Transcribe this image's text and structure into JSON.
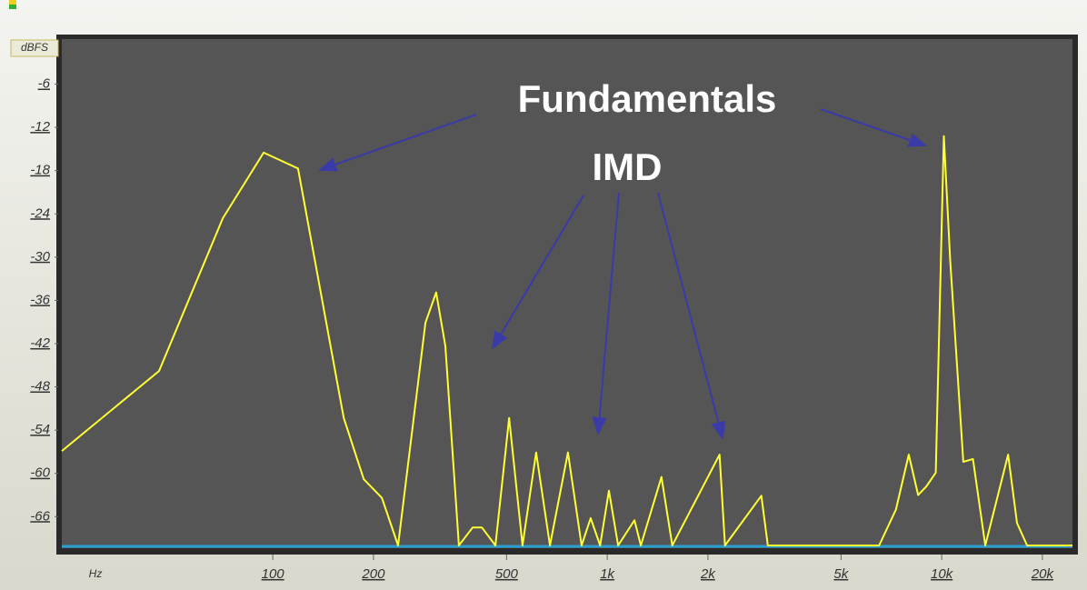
{
  "chart_data": {
    "type": "line",
    "x_label": "Hz",
    "y_label": "dBFS",
    "annotations": [
      "Fundamentals",
      "IMD"
    ],
    "color": "#ffff33",
    "log_x": true,
    "xlim": [
      23.4,
      24600
    ],
    "ylim": [
      -70,
      0
    ],
    "yticks": [
      -6,
      -12,
      -18,
      -24,
      -30,
      -36,
      -42,
      -48,
      -54,
      -60,
      -66
    ],
    "xticks": [
      100,
      200,
      500,
      {
        "value": 1000,
        "label": "1k"
      },
      {
        "value": 2000,
        "label": "2k"
      },
      {
        "value": 5000,
        "label": "5k"
      },
      {
        "value": 10000,
        "label": "10k"
      },
      {
        "value": 20000,
        "label": "20k"
      }
    ],
    "x": [
      23.4,
      45.7,
      70.9,
      93.9,
      119,
      163,
      187,
      212,
      237,
      286,
      308,
      328,
      360,
      396,
      422,
      463,
      509,
      558,
      613,
      674,
      763,
      838,
      892,
      952,
      1012,
      1078,
      1206,
      1260,
      1453,
      1565,
      2166,
      2250,
      2890,
      3020,
      6500,
      7300,
      7970,
      8500,
      9000,
      9600,
      10150,
      10600,
      11600,
      12400,
      13500,
      15800,
      16800,
      18000,
      24600
    ],
    "values": [
      -56.9,
      -45.8,
      -24.6,
      -15.5,
      -17.7,
      -52.3,
      -60.8,
      -63.4,
      -70,
      -39.1,
      -34.9,
      -42.3,
      -70,
      -67.5,
      -67.5,
      -70,
      -52.3,
      -70,
      -57.1,
      -70,
      -57.1,
      -70,
      -66.2,
      -70,
      -62.4,
      -70,
      -66.5,
      -70,
      -60.5,
      -70,
      -57.4,
      -70,
      -63.1,
      -70,
      -70,
      -65,
      -57.4,
      -63,
      -61.8,
      -59.9,
      -13.2,
      -30.3,
      -58.4,
      -58,
      -70,
      -57.4,
      -66.9,
      -70,
      -70
    ]
  }
}
